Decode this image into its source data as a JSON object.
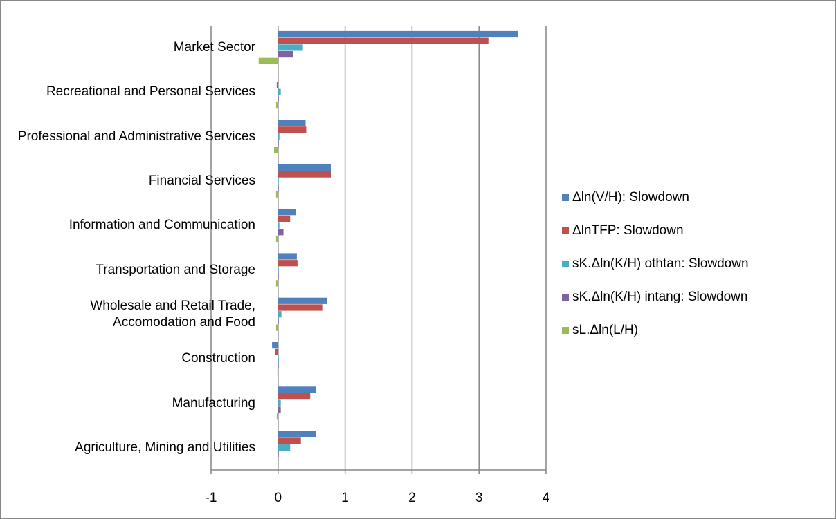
{
  "chart_data": {
    "type": "bar",
    "orientation": "horizontal",
    "categories": [
      "Agriculture, Mining and Utilities",
      "Manufacturing",
      "Construction",
      "Wholesale and Retail Trade, Accomodation and Food",
      "Transportation and Storage",
      "Information and Communication",
      "Financial Services",
      "Professional and Administrative Services",
      "Recreational and Personal Services",
      "Market Sector"
    ],
    "series": [
      {
        "name": "Δln(V/H): Slowdown",
        "color": "#4f81bd",
        "values": [
          0.56,
          0.57,
          -0.09,
          0.73,
          0.28,
          0.27,
          0.79,
          0.41,
          0.0,
          3.58
        ]
      },
      {
        "name": "ΔlnTFP: Slowdown",
        "color": "#c0504d",
        "values": [
          0.34,
          0.48,
          -0.04,
          0.67,
          0.29,
          0.18,
          0.79,
          0.42,
          -0.02,
          3.14
        ]
      },
      {
        "name": "sK.Δln(K/H) othtan: Slowdown",
        "color": "#4bacc6",
        "values": [
          0.18,
          0.04,
          0.01,
          0.05,
          0.01,
          0.02,
          0.01,
          0.02,
          0.04,
          0.37
        ]
      },
      {
        "name": "sK.Δln(K/H) intang: Slowdown",
        "color": "#8064a2",
        "values": [
          0.01,
          0.04,
          0.01,
          0.01,
          0.01,
          0.08,
          0.01,
          0.01,
          0.01,
          0.22
        ]
      },
      {
        "name": "sL.Δln(L/H)",
        "color": "#9bbb59",
        "values": [
          0.0,
          -0.02,
          -0.01,
          -0.03,
          -0.03,
          -0.03,
          -0.03,
          -0.06,
          -0.03,
          -0.29
        ]
      }
    ],
    "xlim": [
      -1,
      4
    ],
    "xticks": [
      -1,
      0,
      1,
      2,
      3,
      4
    ],
    "grid": true,
    "legend": "right"
  }
}
